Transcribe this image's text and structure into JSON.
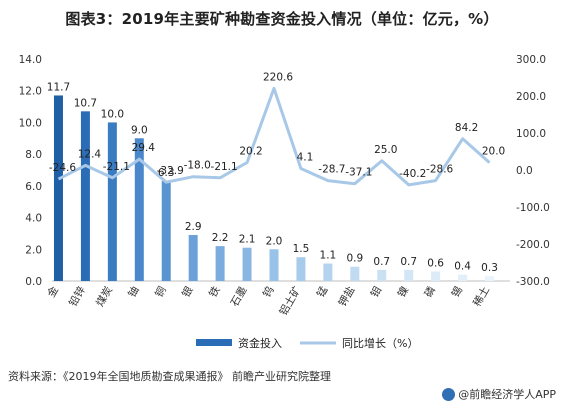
{
  "title": "图表3：2019年主要矿种勘查资金投入情况（单位：亿元，%）",
  "source": "资料来源：《2019年全国地质勘查成果通报》 前瞻产业研究院整理",
  "brand": "@前瞻经济学人APP",
  "colors": {
    "bar_gradient": [
      "#1f5fa6",
      "#2a6cb5",
      "#3a7bc2",
      "#4a88cb",
      "#5a95d2",
      "#6ba1d8",
      "#7aacdd",
      "#89b7e2",
      "#98c2e7",
      "#a6cbeb",
      "#b3d3ee",
      "#bfdaf1",
      "#cae1f3",
      "#d3e6f5",
      "#dbebf7",
      "#e2eff9",
      "#e8f3fa"
    ],
    "line": "#a8c8e8",
    "legend_bar": "#2a6cb5"
  },
  "legend": {
    "bar_label": "资金投入",
    "line_label": "同比增长（%）"
  },
  "chart_data": {
    "type": "bar",
    "categories": [
      "金",
      "铅锌",
      "煤炭",
      "铀",
      "铜",
      "银",
      "铁",
      "石墨",
      "钨",
      "铝土矿",
      "锰",
      "钾盐",
      "钼",
      "镍",
      "磷",
      "锡",
      "稀土"
    ],
    "series": [
      {
        "name": "资金投入",
        "type": "bar",
        "axis": "left",
        "values": [
          11.7,
          10.7,
          10.0,
          9.0,
          6.3,
          2.9,
          2.2,
          2.1,
          2.0,
          1.5,
          1.1,
          0.9,
          0.7,
          0.7,
          0.6,
          0.4,
          0.3
        ]
      },
      {
        "name": "同比增长（%）",
        "type": "line",
        "axis": "right",
        "values": [
          -24.6,
          12.4,
          -21.1,
          29.4,
          -32.9,
          -18.0,
          -21.1,
          20.2,
          220.6,
          4.1,
          -28.7,
          -37.1,
          25.0,
          -40.2,
          -28.6,
          84.2,
          20.0
        ]
      }
    ],
    "y_left": {
      "ylim": [
        0,
        14
      ],
      "ticks": [
        "0.0",
        "2.0",
        "4.0",
        "6.0",
        "8.0",
        "10.0",
        "12.0",
        "14.0"
      ]
    },
    "y_right": {
      "ylim": [
        -300,
        300
      ],
      "ticks": [
        "-300.0",
        "-200.0",
        "-100.0",
        "0.0",
        "100.0",
        "200.0",
        "300.0"
      ]
    },
    "grid": false,
    "legend_position": "bottom"
  }
}
